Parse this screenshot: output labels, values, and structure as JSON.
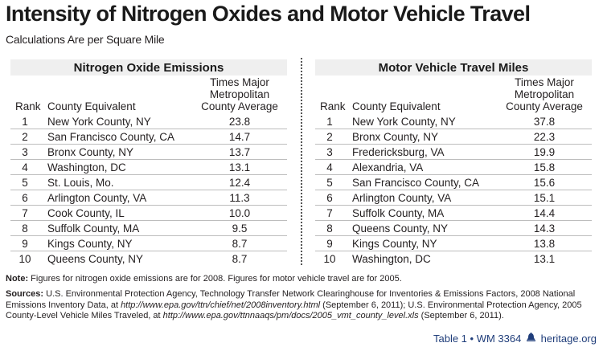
{
  "title": "Intensity of Nitrogen Oxides and Motor Vehicle Travel",
  "subtitle": "Calculations Are per Square Mile",
  "columns": {
    "rank": "Rank",
    "county": "County Equivalent",
    "avg_line1": "Times Major",
    "avg_line2": "Metropolitan",
    "avg_line3": "County Average"
  },
  "tables": [
    {
      "heading": "Nitrogen Oxide Emissions",
      "rows": [
        {
          "rank": "1",
          "county": "New York County, NY",
          "value": "23.8"
        },
        {
          "rank": "2",
          "county": "San Francisco County, CA",
          "value": "14.7"
        },
        {
          "rank": "3",
          "county": "Bronx County, NY",
          "value": "13.7"
        },
        {
          "rank": "4",
          "county": "Washington, DC",
          "value": "13.1"
        },
        {
          "rank": "5",
          "county": "St. Louis, Mo.",
          "value": "12.4"
        },
        {
          "rank": "6",
          "county": "Arlington County, VA",
          "value": "11.3"
        },
        {
          "rank": "7",
          "county": "Cook County, IL",
          "value": "10.0"
        },
        {
          "rank": "8",
          "county": "Suffolk County, MA",
          "value": "9.5"
        },
        {
          "rank": "9",
          "county": "Kings County, NY",
          "value": "8.7"
        },
        {
          "rank": "10",
          "county": "Queens County, NY",
          "value": "8.7"
        }
      ]
    },
    {
      "heading": "Motor Vehicle Travel Miles",
      "rows": [
        {
          "rank": "1",
          "county": "New York County, NY",
          "value": "37.8"
        },
        {
          "rank": "2",
          "county": "Bronx County, NY",
          "value": "22.3"
        },
        {
          "rank": "3",
          "county": "Fredericksburg, VA",
          "value": "19.9"
        },
        {
          "rank": "4",
          "county": "Alexandria, VA",
          "value": "15.8"
        },
        {
          "rank": "5",
          "county": "San Francisco County, CA",
          "value": "15.6"
        },
        {
          "rank": "6",
          "county": "Arlington County, VA",
          "value": "15.1"
        },
        {
          "rank": "7",
          "county": "Suffolk County, MA",
          "value": "14.4"
        },
        {
          "rank": "8",
          "county": "Queens County, NY",
          "value": "14.3"
        },
        {
          "rank": "9",
          "county": "Kings County, NY",
          "value": "13.8"
        },
        {
          "rank": "10",
          "county": "Washington, DC",
          "value": "13.1"
        }
      ]
    }
  ],
  "note": {
    "label": "Note:",
    "text": " Figures for nitrogen oxide emissions are for 2008. Figures for motor vehicle travel are for 2005."
  },
  "sources": {
    "label": "Sources:",
    "part1": " U.S. Environmental Protection Agency, Technology Transfer Network Clearinghouse for Inventories & Emissions Factors, 2008 National Emissions Inventory Data, at ",
    "url1": "http://www.epa.gov/ttn/chief/net/2008inventory.html",
    "part2": " (September 6, 2011); U.S. Environmental Protection Agency, 2005 County-Level Vehicle Miles Traveled, at ",
    "url2": "http://www.epa.gov/ttnnaaqs/pm/docs/2005_vmt_county_level.xls",
    "part3": " (September 6, 2011)."
  },
  "footer": {
    "table_label": "Table 1",
    "separator": "•",
    "wm": "WM 3364",
    "bell_icon": "liberty-bell-icon",
    "site": "heritage.org"
  },
  "colors": {
    "band": "#efefef",
    "footer_text": "#1f3d7a",
    "row_rule": "#bdbdbd"
  }
}
